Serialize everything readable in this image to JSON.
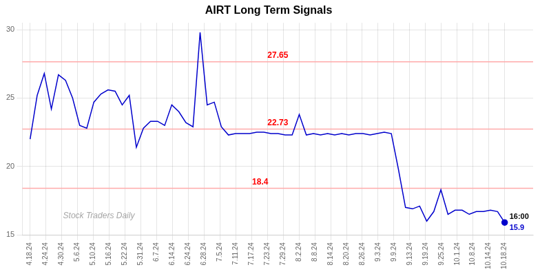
{
  "chart_data": {
    "type": "line",
    "title": "AIRT Long Term Signals",
    "color": "#0000CC",
    "grid": true,
    "xlim": [
      -0.5,
      31.8
    ],
    "xticks": [
      {
        "value": 0,
        "label": "4.18.24"
      },
      {
        "value": 1,
        "label": "4.24.24"
      },
      {
        "value": 2,
        "label": "4.30.24"
      },
      {
        "value": 3,
        "label": "5.6.24"
      },
      {
        "value": 4,
        "label": "5.10.24"
      },
      {
        "value": 5,
        "label": "5.16.24"
      },
      {
        "value": 6,
        "label": "5.22.24"
      },
      {
        "value": 7,
        "label": "5.31.24"
      },
      {
        "value": 8,
        "label": "6.7.24"
      },
      {
        "value": 9,
        "label": "6.14.24"
      },
      {
        "value": 10,
        "label": "6.24.24"
      },
      {
        "value": 11,
        "label": "6.28.24"
      },
      {
        "value": 12,
        "label": "7.5.24"
      },
      {
        "value": 13,
        "label": "7.11.24"
      },
      {
        "value": 14,
        "label": "7.17.24"
      },
      {
        "value": 15,
        "label": "7.23.24"
      },
      {
        "value": 16,
        "label": "7.29.24"
      },
      {
        "value": 17,
        "label": "8.2.24"
      },
      {
        "value": 18,
        "label": "8.8.24"
      },
      {
        "value": 19,
        "label": "8.14.24"
      },
      {
        "value": 20,
        "label": "8.20.24"
      },
      {
        "value": 21,
        "label": "8.26.24"
      },
      {
        "value": 22,
        "label": "9.3.24"
      },
      {
        "value": 23,
        "label": "9.9.24"
      },
      {
        "value": 24,
        "label": "9.13.24"
      },
      {
        "value": 25,
        "label": "9.19.24"
      },
      {
        "value": 26,
        "label": "9.25.24"
      },
      {
        "value": 27,
        "label": "10.1.24"
      },
      {
        "value": 28,
        "label": "10.8.24"
      },
      {
        "value": 29,
        "label": "10.14.24"
      },
      {
        "value": 30,
        "label": "10.18.24"
      }
    ],
    "ylim": [
      15,
      30.5
    ],
    "yticks": [
      15,
      20,
      25,
      30
    ],
    "values": [
      22.0,
      25.2,
      26.8,
      24.2,
      26.7,
      26.3,
      25.0,
      23.0,
      22.8,
      24.7,
      25.3,
      25.6,
      25.5,
      24.5,
      25.2,
      21.4,
      22.8,
      23.3,
      23.3,
      23.0,
      24.5,
      24.0,
      23.2,
      22.9,
      29.8,
      24.5,
      24.7,
      22.9,
      22.3,
      22.4,
      22.4,
      22.4,
      22.5,
      22.5,
      22.4,
      22.4,
      22.3,
      22.3,
      23.8,
      22.3,
      22.4,
      22.3,
      22.4,
      22.3,
      22.4,
      22.3,
      22.4,
      22.4,
      22.3,
      22.4,
      22.5,
      22.4,
      19.8,
      17.0,
      16.9,
      17.1,
      16.0,
      16.7,
      18.3,
      16.5,
      16.8,
      16.8,
      16.5,
      16.7,
      16.7,
      16.8,
      16.7,
      15.9
    ],
    "hlines": [
      {
        "value": 27.65,
        "label": "27.65",
        "color": "#ffaaaa"
      },
      {
        "value": 22.73,
        "label": "22.73",
        "color": "#ffaaaa"
      },
      {
        "value": 18.4,
        "label": "18.4",
        "color": "#ffaaaa"
      }
    ],
    "annotations": [
      "16:00",
      "15.9"
    ],
    "watermark": "Stock Traders Daily"
  }
}
